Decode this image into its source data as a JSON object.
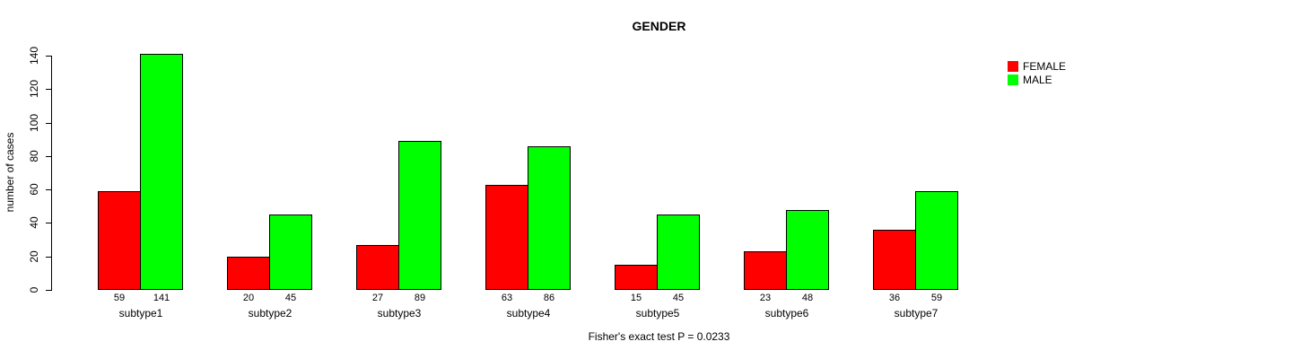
{
  "figure": {
    "title": "GENDER",
    "y_axis_label": "number of cases",
    "caption": "Fisher's exact test P = 0.0233"
  },
  "legend": {
    "position": "top-right",
    "items": [
      {
        "label": "FEMALE",
        "color": "#ff0000",
        "swatch": "square"
      },
      {
        "label": "MALE",
        "color": "#00ff00",
        "swatch": "square"
      }
    ]
  },
  "chart_data": {
    "type": "bar",
    "title": "GENDER",
    "xlabel": "",
    "ylabel": "number of cases",
    "categories": [
      "subtype1",
      "subtype2",
      "subtype3",
      "subtype4",
      "subtype5",
      "subtype6",
      "subtype7"
    ],
    "series": [
      {
        "name": "FEMALE",
        "color": "#ff0000",
        "values": [
          59,
          20,
          27,
          63,
          15,
          23,
          36
        ]
      },
      {
        "name": "MALE",
        "color": "#00ff00",
        "values": [
          141,
          45,
          89,
          86,
          45,
          48,
          59
        ]
      }
    ],
    "bar_value_labels": [
      [
        59,
        20,
        27,
        63,
        15,
        23,
        36
      ],
      [
        141,
        45,
        89,
        86,
        45,
        48,
        59
      ]
    ],
    "ylim": [
      0,
      140
    ],
    "yticks": [
      0,
      20,
      40,
      60,
      80,
      100,
      120,
      140
    ],
    "grid": false,
    "legend_position": "top-right",
    "bar_border_color": "#000000",
    "annotation": "Fisher's exact test P = 0.0233"
  }
}
